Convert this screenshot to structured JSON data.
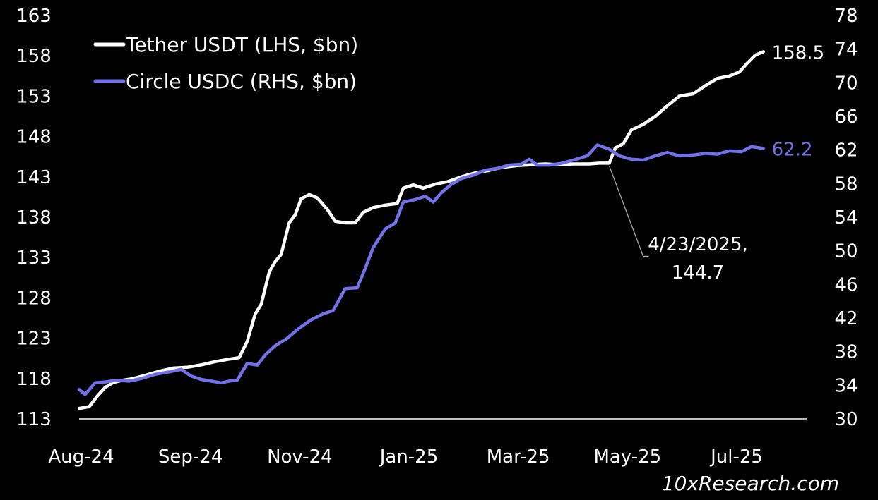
{
  "chart_data": {
    "type": "line",
    "x_ticks": [
      "Aug-24",
      "Sep-24",
      "Nov-24",
      "Jan-25",
      "Mar-25",
      "May-25",
      "Jul-25"
    ],
    "y_left_ticks": [
      "163",
      "158",
      "153",
      "148",
      "143",
      "138",
      "133",
      "128",
      "123",
      "118",
      "113"
    ],
    "y_right_ticks": [
      "78",
      "74",
      "70",
      "66",
      "62",
      "58",
      "54",
      "50",
      "46",
      "42",
      "38",
      "34",
      "30"
    ],
    "y_left_range": [
      113,
      163
    ],
    "y_right_range": [
      30,
      78
    ],
    "x_range": [
      "2024-08-01",
      "2025-07-31"
    ],
    "grid": false,
    "legend_position": "top-left",
    "series": [
      {
        "name": "Tether USDT (LHS, $bn)",
        "axis": "left",
        "color": "#ffffff",
        "end_label": "158.5",
        "points": [
          [
            "2024-08-01",
            114.3
          ],
          [
            "2024-08-06",
            114.5
          ],
          [
            "2024-08-10",
            115.8
          ],
          [
            "2024-08-14",
            116.9
          ],
          [
            "2024-08-18",
            117.5
          ],
          [
            "2024-08-23",
            117.8
          ],
          [
            "2024-08-28",
            118.0
          ],
          [
            "2024-09-03",
            118.4
          ],
          [
            "2024-09-10",
            118.9
          ],
          [
            "2024-09-17",
            119.3
          ],
          [
            "2024-09-24",
            119.4
          ],
          [
            "2024-10-01",
            119.7
          ],
          [
            "2024-10-08",
            120.1
          ],
          [
            "2024-10-15",
            120.4
          ],
          [
            "2024-10-20",
            120.6
          ],
          [
            "2024-10-24",
            122.6
          ],
          [
            "2024-10-28",
            126.0
          ],
          [
            "2024-10-31",
            127.2
          ],
          [
            "2024-11-04",
            131.2
          ],
          [
            "2024-11-07",
            132.5
          ],
          [
            "2024-11-10",
            133.4
          ],
          [
            "2024-11-14",
            137.3
          ],
          [
            "2024-11-17",
            138.3
          ],
          [
            "2024-11-20",
            140.3
          ],
          [
            "2024-11-24",
            140.8
          ],
          [
            "2024-11-28",
            140.4
          ],
          [
            "2024-12-03",
            139.0
          ],
          [
            "2024-12-07",
            137.5
          ],
          [
            "2024-12-12",
            137.3
          ],
          [
            "2024-12-17",
            137.3
          ],
          [
            "2024-12-21",
            138.6
          ],
          [
            "2024-12-26",
            139.2
          ],
          [
            "2025-01-01",
            139.5
          ],
          [
            "2025-01-07",
            139.7
          ],
          [
            "2025-01-10",
            141.6
          ],
          [
            "2025-01-15",
            142.0
          ],
          [
            "2025-01-20",
            141.6
          ],
          [
            "2025-01-26",
            142.1
          ],
          [
            "2025-02-01",
            142.4
          ],
          [
            "2025-02-08",
            143.0
          ],
          [
            "2025-02-15",
            143.5
          ],
          [
            "2025-02-22",
            143.8
          ],
          [
            "2025-03-01",
            144.2
          ],
          [
            "2025-03-08",
            144.4
          ],
          [
            "2025-03-15",
            144.5
          ],
          [
            "2025-03-22",
            144.6
          ],
          [
            "2025-03-29",
            144.5
          ],
          [
            "2025-04-05",
            144.6
          ],
          [
            "2025-04-13",
            144.6
          ],
          [
            "2025-04-18",
            144.7
          ],
          [
            "2025-04-23",
            144.7
          ],
          [
            "2025-04-26",
            146.6
          ],
          [
            "2025-04-30",
            147.1
          ],
          [
            "2025-05-04",
            148.8
          ],
          [
            "2025-05-10",
            149.5
          ],
          [
            "2025-05-16",
            150.5
          ],
          [
            "2025-05-22",
            151.8
          ],
          [
            "2025-05-28",
            153.0
          ],
          [
            "2025-06-04",
            153.3
          ],
          [
            "2025-06-10",
            154.3
          ],
          [
            "2025-06-16",
            155.2
          ],
          [
            "2025-06-22",
            155.5
          ],
          [
            "2025-06-27",
            156.0
          ],
          [
            "2025-07-01",
            157.1
          ],
          [
            "2025-07-05",
            158.1
          ],
          [
            "2025-07-09",
            158.5
          ]
        ]
      },
      {
        "name": "Circle USDC (RHS, $bn)",
        "axis": "right",
        "color": "#7171e8",
        "end_label": "62.2",
        "points": [
          [
            "2024-08-01",
            33.5
          ],
          [
            "2024-08-04",
            32.9
          ],
          [
            "2024-08-09",
            34.3
          ],
          [
            "2024-08-14",
            34.4
          ],
          [
            "2024-08-20",
            34.6
          ],
          [
            "2024-08-26",
            34.5
          ],
          [
            "2024-09-01",
            34.8
          ],
          [
            "2024-09-08",
            35.3
          ],
          [
            "2024-09-15",
            35.6
          ],
          [
            "2024-09-21",
            35.9
          ],
          [
            "2024-09-26",
            35.1
          ],
          [
            "2024-10-01",
            34.7
          ],
          [
            "2024-10-06",
            34.5
          ],
          [
            "2024-10-11",
            34.3
          ],
          [
            "2024-10-15",
            34.5
          ],
          [
            "2024-10-19",
            34.6
          ],
          [
            "2024-10-24",
            36.6
          ],
          [
            "2024-10-29",
            36.4
          ],
          [
            "2024-11-02",
            37.6
          ],
          [
            "2024-11-07",
            38.7
          ],
          [
            "2024-11-13",
            39.6
          ],
          [
            "2024-11-19",
            40.8
          ],
          [
            "2024-11-25",
            41.8
          ],
          [
            "2024-12-01",
            42.5
          ],
          [
            "2024-12-06",
            42.9
          ],
          [
            "2024-12-12",
            45.5
          ],
          [
            "2024-12-18",
            45.6
          ],
          [
            "2024-12-22",
            47.9
          ],
          [
            "2024-12-26",
            50.4
          ],
          [
            "2025-01-01",
            52.6
          ],
          [
            "2025-01-06",
            53.3
          ],
          [
            "2025-01-10",
            55.8
          ],
          [
            "2025-01-16",
            56.1
          ],
          [
            "2025-01-21",
            56.5
          ],
          [
            "2025-01-25",
            55.8
          ],
          [
            "2025-01-29",
            56.9
          ],
          [
            "2025-02-03",
            57.9
          ],
          [
            "2025-02-08",
            58.6
          ],
          [
            "2025-02-14",
            59.0
          ],
          [
            "2025-02-20",
            59.6
          ],
          [
            "2025-02-26",
            59.8
          ],
          [
            "2025-03-04",
            60.2
          ],
          [
            "2025-03-10",
            60.3
          ],
          [
            "2025-03-14",
            60.9
          ],
          [
            "2025-03-18",
            60.2
          ],
          [
            "2025-03-24",
            60.2
          ],
          [
            "2025-03-30",
            60.4
          ],
          [
            "2025-04-05",
            60.8
          ],
          [
            "2025-04-12",
            61.3
          ],
          [
            "2025-04-17",
            62.6
          ],
          [
            "2025-04-23",
            62.1
          ],
          [
            "2025-04-28",
            61.3
          ],
          [
            "2025-05-04",
            60.9
          ],
          [
            "2025-05-10",
            60.8
          ],
          [
            "2025-05-16",
            61.3
          ],
          [
            "2025-05-22",
            61.7
          ],
          [
            "2025-05-28",
            61.3
          ],
          [
            "2025-06-04",
            61.4
          ],
          [
            "2025-06-10",
            61.6
          ],
          [
            "2025-06-16",
            61.5
          ],
          [
            "2025-06-22",
            61.9
          ],
          [
            "2025-06-28",
            61.8
          ],
          [
            "2025-07-03",
            62.4
          ],
          [
            "2025-07-09",
            62.2
          ]
        ]
      }
    ],
    "annotations": [
      {
        "date": "2025-04-23",
        "value": 144.7,
        "axis": "left",
        "text_lines": [
          "4/23/2025,",
          "144.7"
        ]
      }
    ]
  },
  "watermark": "10xResearch.com"
}
